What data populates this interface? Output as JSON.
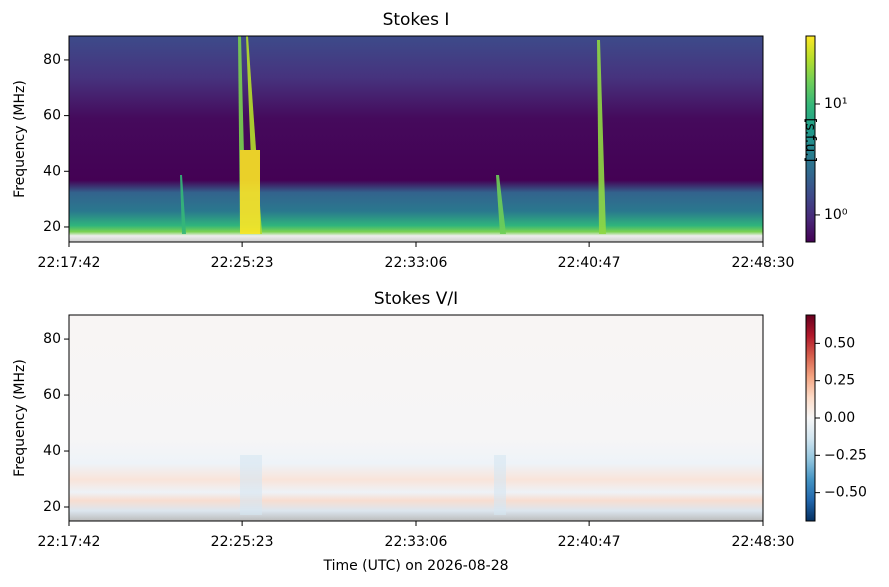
{
  "chart_data": [
    {
      "type": "spectrogram",
      "title": "Stokes I",
      "ylabel": "Frequency (MHz)",
      "xlim": [
        80262,
        82110
      ],
      "xticks": [
        {
          "value": 80262,
          "label": "22:17:42"
        },
        {
          "value": 80723,
          "label": "22:25:23"
        },
        {
          "value": 81186,
          "label": "22:33:06"
        },
        {
          "value": 81647,
          "label": "22:40:47"
        },
        {
          "value": 82110,
          "label": "22:48:30"
        }
      ],
      "ylim": [
        14.6,
        88.6
      ],
      "yticks": [
        20,
        40,
        60,
        80
      ],
      "colorbar": {
        "label": "[s.f.u.]",
        "scale": "log",
        "colormap": "viridis",
        "lim": [
          0.57,
          41
        ],
        "ticks": [
          {
            "value": 1,
            "label": "10⁰"
          },
          {
            "value": 10,
            "label": "10¹"
          }
        ]
      }
    },
    {
      "type": "spectrogram",
      "title": "Stokes V/I",
      "ylabel": "Frequency (MHz)",
      "xlabel": "Time (UTC) on 2026-08-28",
      "xlim": [
        80262,
        82110
      ],
      "xticks": [
        {
          "value": 80262,
          "label": "22:17:42"
        },
        {
          "value": 80723,
          "label": "22:25:23"
        },
        {
          "value": 81186,
          "label": "22:33:06"
        },
        {
          "value": 81647,
          "label": "22:40:47"
        },
        {
          "value": 82110,
          "label": "22:48:30"
        }
      ],
      "ylim": [
        15,
        88.6
      ],
      "yticks": [
        20,
        40,
        60,
        80
      ],
      "colorbar": {
        "scale": "linear",
        "colormap": "RdBu_r",
        "lim": [
          -0.69,
          0.69
        ],
        "ticks": [
          {
            "value": 0.5,
            "label": "0.50"
          },
          {
            "value": 0.25,
            "label": "0.25"
          },
          {
            "value": 0,
            "label": "0.00"
          },
          {
            "value": -0.25,
            "label": "−0.25"
          },
          {
            "value": -0.5,
            "label": "−0.50"
          }
        ]
      }
    }
  ]
}
